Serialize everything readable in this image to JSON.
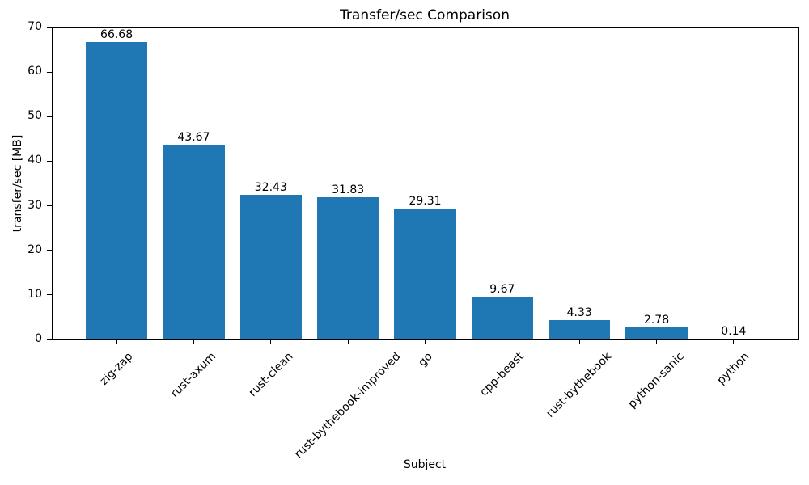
{
  "chart_data": {
    "type": "bar",
    "title": "Transfer/sec Comparison",
    "xlabel": "Subject",
    "ylabel": "transfer/sec [MB]",
    "categories": [
      "zig-zap",
      "rust-axum",
      "rust-clean",
      "rust-bythebook-improved",
      "go",
      "cpp-beast",
      "rust-bythebook",
      "python-sanic",
      "python"
    ],
    "values": [
      66.68,
      43.67,
      32.43,
      31.83,
      29.31,
      9.67,
      4.33,
      2.78,
      0.14
    ],
    "value_labels": [
      "66.68",
      "43.67",
      "32.43",
      "31.83",
      "29.31",
      "9.67",
      "4.33",
      "2.78",
      "0.14"
    ],
    "yticks": [
      0,
      10,
      20,
      30,
      40,
      50,
      60,
      70
    ],
    "ylim": [
      0,
      70
    ],
    "bar_color": "#1f77b4",
    "axis_color": "#000000",
    "grid": false,
    "legend": "none",
    "x_tick_rotation_deg": 45
  }
}
